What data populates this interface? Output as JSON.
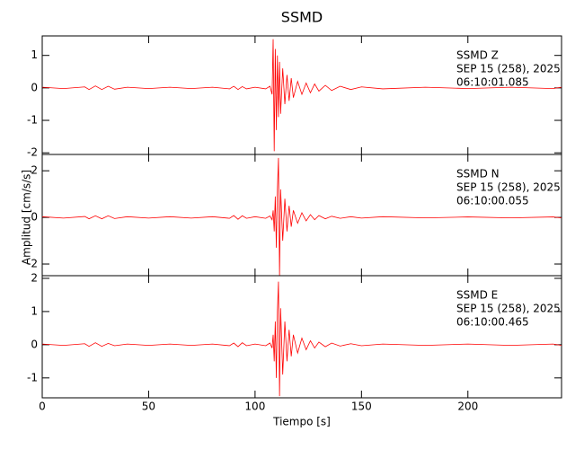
{
  "chart_data": [
    {
      "type": "line",
      "title": "SSMD",
      "annotation": [
        "SSMD   Z",
        "SEP 15 (258), 2025",
        "06:10:01.085"
      ],
      "xlim": [
        0,
        244
      ],
      "xticks": [
        0,
        50,
        100,
        150,
        200
      ],
      "ylim": [
        -2.05,
        1.6
      ],
      "yticks": [
        -2,
        -1,
        0,
        1
      ],
      "series": [
        {
          "color": "#ff0000",
          "x": [
            0,
            10,
            20,
            22,
            25,
            28,
            31,
            34,
            40,
            50,
            60,
            70,
            80,
            88,
            90,
            92,
            94,
            96,
            100,
            105,
            107,
            108,
            108.5,
            109,
            109.5,
            110,
            110.5,
            111,
            111.5,
            112,
            113,
            114,
            115,
            116,
            117,
            118,
            120,
            122,
            124,
            126,
            128,
            130,
            133,
            136,
            140,
            145,
            150,
            160,
            180,
            200,
            220,
            240,
            244
          ],
          "values": [
            0.02,
            -0.02,
            0.03,
            -0.05,
            0.06,
            -0.05,
            0.05,
            -0.04,
            0.02,
            -0.02,
            0.02,
            -0.02,
            0.02,
            -0.03,
            0.05,
            -0.05,
            0.04,
            -0.03,
            0.02,
            -0.03,
            0.05,
            -0.2,
            1.5,
            -1.95,
            1.2,
            -1.3,
            1.0,
            -0.9,
            0.8,
            -0.8,
            0.6,
            -0.5,
            0.4,
            -0.4,
            0.3,
            -0.3,
            0.2,
            -0.2,
            0.15,
            -0.15,
            0.12,
            -0.1,
            0.08,
            -0.08,
            0.05,
            -0.05,
            0.03,
            -0.03,
            0.02,
            -0.02,
            0.02,
            -0.02,
            0.02
          ]
        }
      ]
    },
    {
      "type": "line",
      "ylabel": "Amplitud [cm/s/s]",
      "annotation": [
        "SSMD   N",
        "SEP 15 (258), 2025",
        "06:10:00.055"
      ],
      "xlim": [
        0,
        244
      ],
      "xticks": [
        0,
        50,
        100,
        150,
        200
      ],
      "ylim": [
        -2.5,
        2.7
      ],
      "yticks": [
        -2,
        0,
        2
      ],
      "series": [
        {
          "color": "#ff0000",
          "x": [
            0,
            10,
            20,
            22,
            25,
            28,
            31,
            34,
            40,
            50,
            60,
            70,
            80,
            88,
            90,
            92,
            94,
            96,
            100,
            105,
            107,
            108,
            108.5,
            109,
            109.5,
            110,
            110.5,
            111,
            111.5,
            112,
            113,
            114,
            115,
            116,
            117,
            118,
            120,
            122,
            124,
            126,
            128,
            130,
            133,
            136,
            140,
            145,
            150,
            160,
            180,
            200,
            220,
            240,
            244
          ],
          "values": [
            0.03,
            -0.03,
            0.04,
            -0.06,
            0.07,
            -0.06,
            0.07,
            -0.05,
            0.03,
            -0.03,
            0.03,
            -0.03,
            0.03,
            -0.04,
            0.08,
            -0.08,
            0.07,
            -0.04,
            0.03,
            -0.04,
            0.06,
            -0.1,
            0.3,
            -0.6,
            0.9,
            -1.3,
            1.2,
            2.55,
            -2.5,
            1.2,
            -1.0,
            0.8,
            -0.6,
            0.5,
            -0.4,
            0.3,
            -0.25,
            0.2,
            -0.15,
            0.12,
            -0.1,
            0.08,
            -0.06,
            0.05,
            -0.04,
            0.03,
            -0.03,
            0.03,
            -0.02,
            0.02,
            -0.02,
            0.02,
            -0.02
          ]
        }
      ]
    },
    {
      "type": "line",
      "xlabel": "Tiempo [s]",
      "annotation": [
        "SSMD   E",
        "SEP 15 (258), 2025",
        "06:10:00.465"
      ],
      "xlim": [
        0,
        244
      ],
      "xticks": [
        0,
        50,
        100,
        150,
        200
      ],
      "ylim": [
        -1.6,
        2.08
      ],
      "yticks": [
        -1,
        0,
        1,
        2
      ],
      "series": [
        {
          "color": "#ff0000",
          "x": [
            0,
            10,
            20,
            22,
            25,
            28,
            31,
            34,
            40,
            50,
            60,
            70,
            80,
            88,
            90,
            92,
            94,
            96,
            100,
            105,
            107,
            108,
            108.5,
            109,
            109.5,
            110,
            110.5,
            111,
            111.5,
            112,
            113,
            114,
            115,
            116,
            117,
            118,
            120,
            122,
            124,
            126,
            128,
            130,
            133,
            136,
            140,
            145,
            150,
            160,
            180,
            200,
            220,
            240,
            244
          ],
          "values": [
            0.02,
            -0.02,
            0.03,
            -0.05,
            0.06,
            -0.05,
            0.04,
            -0.03,
            0.02,
            -0.02,
            0.02,
            -0.02,
            0.02,
            -0.03,
            0.05,
            -0.06,
            0.06,
            -0.03,
            0.02,
            -0.03,
            0.05,
            -0.1,
            0.3,
            -0.5,
            0.7,
            -1.0,
            1.0,
            1.9,
            -1.55,
            1.1,
            -0.9,
            0.7,
            -0.5,
            0.45,
            -0.35,
            0.3,
            -0.25,
            0.2,
            -0.15,
            0.12,
            -0.1,
            0.08,
            -0.06,
            0.05,
            -0.04,
            0.03,
            -0.03,
            0.02,
            -0.02,
            0.02,
            -0.02,
            0.02,
            -0.02
          ]
        }
      ]
    }
  ]
}
